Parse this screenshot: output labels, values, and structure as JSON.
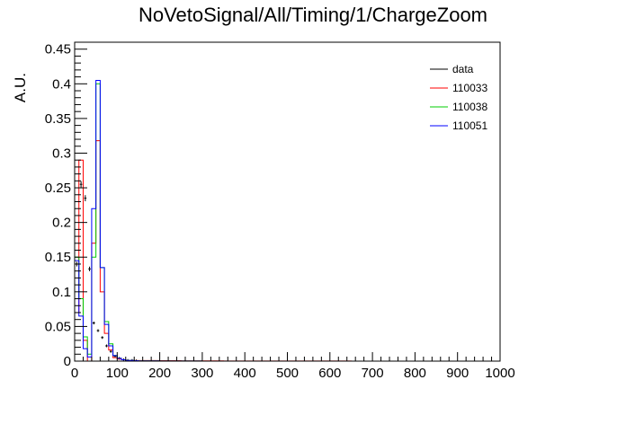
{
  "chart_data": {
    "type": "histogram",
    "title": "NoVetoSignal/All/Timing/1/ChargeZoom",
    "xlabel": "",
    "ylabel": "A.U.",
    "xlim": [
      0,
      1000
    ],
    "ylim": [
      0,
      0.46
    ],
    "bin_width": 10,
    "x_ticks": [
      0,
      100,
      200,
      300,
      400,
      500,
      600,
      700,
      800,
      900,
      1000
    ],
    "x_tick_labels": [
      "0",
      "100",
      "200",
      "300",
      "400",
      "500",
      "600",
      "700",
      "800",
      "900",
      "1000"
    ],
    "y_ticks": [
      0,
      0.05,
      0.1,
      0.15,
      0.2,
      0.25,
      0.3,
      0.35,
      0.4,
      0.45
    ],
    "y_tick_labels": [
      "0",
      "0.05",
      "0.1",
      "0.15",
      "0.2",
      "0.25",
      "0.3",
      "0.35",
      "0.4",
      "0.45"
    ],
    "legend_position": "top-right",
    "series": [
      {
        "name": "data",
        "color": "#000000",
        "style": "markers-with-error-bars",
        "bin_edges": [
          0,
          10,
          20,
          30,
          40,
          50,
          60,
          70,
          80,
          90,
          100,
          110,
          120,
          130,
          140,
          150
        ],
        "values": [
          0.14,
          0.255,
          0.235,
          0.133,
          0.055,
          0.044,
          0.034,
          0.022,
          0.014,
          0.007,
          0.004,
          0.002,
          0.001,
          0.001,
          0.0005
        ]
      },
      {
        "name": "110033",
        "color": "#ff0000",
        "style": "step",
        "bin_edges": [
          0,
          10,
          20,
          30,
          40,
          50,
          60,
          70,
          80,
          90,
          100,
          110,
          120,
          130,
          140,
          150,
          200,
          250,
          300,
          350,
          400,
          500,
          650,
          700
        ],
        "values": [
          0.07,
          0.29,
          0.03,
          0.0,
          0.17,
          0.318,
          0.1,
          0.04,
          0.016,
          0.005,
          0.003,
          0.002,
          0.001,
          0.001,
          0.0008,
          0.0008,
          0.0006,
          0.0004,
          0.0004,
          0.0002,
          0.0002,
          0.0001,
          0.0
        ]
      },
      {
        "name": "110038",
        "color": "#00cc00",
        "style": "step",
        "bin_edges": [
          0,
          10,
          20,
          30,
          40,
          50,
          60,
          70,
          80,
          90,
          100,
          110,
          120,
          130,
          140,
          150,
          200,
          250,
          300
        ],
        "values": [
          0.15,
          0.09,
          0.035,
          0.01,
          0.15,
          0.4,
          0.135,
          0.057,
          0.025,
          0.008,
          0.004,
          0.002,
          0.001,
          0.001,
          0.0006,
          0.0004,
          0.0002,
          0.0001
        ]
      },
      {
        "name": "110051",
        "color": "#0000ff",
        "style": "step",
        "bin_edges": [
          0,
          10,
          20,
          30,
          40,
          50,
          60,
          70,
          80,
          90,
          100,
          110,
          120,
          130,
          140,
          150,
          200,
          250,
          300
        ],
        "values": [
          0.145,
          0.065,
          0.018,
          0.006,
          0.22,
          0.405,
          0.135,
          0.053,
          0.022,
          0.008,
          0.004,
          0.002,
          0.001,
          0.001,
          0.0006,
          0.0004,
          0.0002,
          0.0001
        ]
      }
    ]
  }
}
